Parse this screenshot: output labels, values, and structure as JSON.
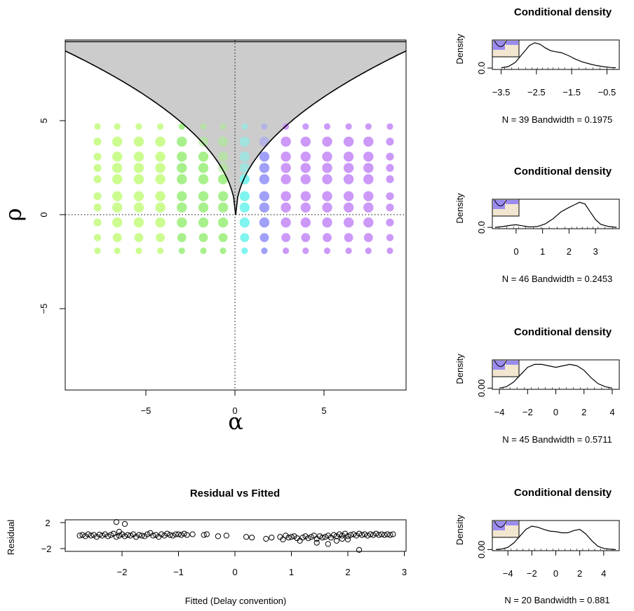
{
  "chart_data": [
    {
      "type": "scatter",
      "xlabel": "α",
      "ylabel": "ρ",
      "xlim": [
        -9.5,
        9.5
      ],
      "ylim": [
        -9.3,
        9.3
      ],
      "xticks": [
        "−5",
        "0",
        "5"
      ],
      "yticks": [
        "−5",
        "0",
        "5"
      ],
      "x_tick_values": [
        -5,
        0,
        5
      ],
      "y_tick_values": [
        -5,
        0,
        5
      ],
      "grid_x": [
        -7.7,
        -6.6,
        -5.4,
        -4.2,
        -3.0,
        -1.8,
        -0.7,
        0.5,
        1.6,
        2.8,
        3.9,
        5.1,
        6.3,
        7.4,
        8.6
      ],
      "grid_y": [
        4.7,
        3.9,
        3.1,
        2.5,
        1.9,
        1.0,
        0.4,
        -0.4,
        -1.2,
        -1.9
      ],
      "shaded_region": "rho > sqrt(8*|alpha|)",
      "colors": {
        "left": "#ccfc90",
        "mid_left": "#a8f08c",
        "center": "#80f4ee",
        "mid_right": "#a0a0f8",
        "right": "#cc99f8",
        "shade": "#cccccc"
      }
    },
    {
      "type": "line",
      "title": "Conditional density",
      "ylabel": "Density",
      "xticks": [
        "−3.5",
        "−2.5",
        "−1.5",
        "−0.5"
      ],
      "x_tick_values": [
        -3.5,
        -2.5,
        -1.5,
        -0.5
      ],
      "xlim": [
        -3.75,
        -0.15
      ],
      "yticks": [
        "0.0"
      ],
      "ylim": [
        -0.05,
        1.0
      ],
      "x": [
        -3.5,
        -3.3,
        -3.1,
        -2.9,
        -2.7,
        -2.55,
        -2.4,
        -2.25,
        -2.1,
        -1.95,
        -1.8,
        -1.6,
        -1.4,
        -1.2,
        -1.0,
        -0.8,
        -0.6,
        -0.4,
        -0.25
      ],
      "y": [
        0.01,
        0.05,
        0.2,
        0.5,
        0.8,
        0.9,
        0.85,
        0.72,
        0.62,
        0.58,
        0.55,
        0.45,
        0.32,
        0.22,
        0.15,
        0.09,
        0.05,
        0.02,
        0.01
      ],
      "footer": "N = 39   Bandwidth = 0.1975"
    },
    {
      "type": "line",
      "title": "Conditional density",
      "ylabel": "Density",
      "xticks": [
        "0",
        "1",
        "2",
        "3"
      ],
      "x_tick_values": [
        0,
        1,
        2,
        3
      ],
      "xlim": [
        -0.9,
        3.9
      ],
      "yticks": [
        "0.0"
      ],
      "ylim": [
        -0.03,
        0.65
      ],
      "x": [
        -0.8,
        -0.5,
        -0.2,
        0.0,
        0.2,
        0.5,
        0.8,
        1.1,
        1.4,
        1.7,
        2.0,
        2.2,
        2.4,
        2.6,
        2.8,
        3.0,
        3.2,
        3.5,
        3.8
      ],
      "y": [
        0.0,
        0.02,
        0.05,
        0.06,
        0.04,
        0.01,
        0.02,
        0.08,
        0.2,
        0.36,
        0.46,
        0.52,
        0.58,
        0.54,
        0.36,
        0.18,
        0.07,
        0.02,
        0.0
      ],
      "footer": "N = 46   Bandwidth = 0.2453"
    },
    {
      "type": "line",
      "title": "Conditional density",
      "ylabel": "Density",
      "xticks": [
        "−4",
        "−2",
        "0",
        "2",
        "4"
      ],
      "x_tick_values": [
        -4,
        -2,
        0,
        2,
        4
      ],
      "xlim": [
        -4.5,
        4.5
      ],
      "yticks": [
        "0.00"
      ],
      "ylim": [
        -0.008,
        0.19
      ],
      "x": [
        -4.0,
        -3.5,
        -3.0,
        -2.5,
        -2.0,
        -1.5,
        -1.0,
        -0.5,
        0.0,
        0.5,
        1.0,
        1.5,
        2.0,
        2.5,
        3.0,
        3.5,
        4.0
      ],
      "y": [
        0.0,
        0.01,
        0.04,
        0.09,
        0.14,
        0.16,
        0.16,
        0.15,
        0.14,
        0.15,
        0.16,
        0.15,
        0.12,
        0.07,
        0.03,
        0.01,
        0.0
      ],
      "footer": "N = 45   Bandwidth = 0.5711"
    },
    {
      "type": "line",
      "title": "Conditional density",
      "ylabel": "Density",
      "xticks": [
        "−4",
        "−2",
        "0",
        "2",
        "4"
      ],
      "x_tick_values": [
        -4,
        -2,
        0,
        2,
        4
      ],
      "xlim": [
        -5.3,
        5.3
      ],
      "yticks": [
        "0.00"
      ],
      "ylim": [
        -0.01,
        0.26
      ],
      "x": [
        -5.0,
        -4.5,
        -4.0,
        -3.5,
        -3.0,
        -2.5,
        -2.0,
        -1.5,
        -1.0,
        -0.5,
        0.0,
        0.5,
        1.0,
        1.5,
        2.0,
        2.5,
        3.0,
        3.5,
        4.0,
        4.5,
        5.0
      ],
      "y": [
        0.0,
        0.005,
        0.02,
        0.06,
        0.12,
        0.18,
        0.21,
        0.2,
        0.18,
        0.165,
        0.16,
        0.15,
        0.15,
        0.17,
        0.18,
        0.14,
        0.08,
        0.03,
        0.01,
        0.003,
        0.0
      ],
      "footer": "N = 20   Bandwidth = 0.881"
    },
    {
      "type": "scatter",
      "title": "Residual vs Fitted",
      "xlabel": "Fitted (Delay convention)",
      "ylabel": "Residual",
      "xticks": [
        "−2",
        "−1",
        "0",
        "1",
        "2",
        "3"
      ],
      "x_tick_values": [
        -2,
        -1,
        0,
        1,
        2,
        3
      ],
      "yticks": [
        "2",
        "−2"
      ],
      "y_tick_values": [
        2,
        -2
      ],
      "xlim": [
        -3.0,
        3.0
      ],
      "ylim": [
        -2.6,
        2.6
      ],
      "points": [
        [
          -2.75,
          0.0
        ],
        [
          -2.7,
          0.1
        ],
        [
          -2.65,
          -0.1
        ],
        [
          -2.6,
          0.2
        ],
        [
          -2.55,
          0.0
        ],
        [
          -2.5,
          0.1
        ],
        [
          -2.45,
          -0.2
        ],
        [
          -2.4,
          0.15
        ],
        [
          -2.35,
          0.0
        ],
        [
          -2.3,
          0.2
        ],
        [
          -2.25,
          -0.1
        ],
        [
          -2.2,
          0.1
        ],
        [
          -2.15,
          0.3
        ],
        [
          -2.1,
          -0.2
        ],
        [
          -2.05,
          0.0
        ],
        [
          -2.0,
          0.2
        ],
        [
          -1.95,
          -0.1
        ],
        [
          -1.9,
          0.1
        ],
        [
          -1.85,
          0.0
        ],
        [
          -1.8,
          0.2
        ],
        [
          -1.75,
          -0.2
        ],
        [
          -1.7,
          0.1
        ],
        [
          -1.65,
          0.0
        ],
        [
          -1.6,
          -0.1
        ],
        [
          -1.55,
          0.2
        ],
        [
          -1.5,
          0.4
        ],
        [
          -1.45,
          0.0
        ],
        [
          -1.4,
          0.1
        ],
        [
          -1.35,
          -0.2
        ],
        [
          -1.3,
          0.2
        ],
        [
          -1.25,
          0.0
        ],
        [
          -1.2,
          0.3
        ],
        [
          -1.15,
          0.1
        ],
        [
          -1.1,
          0.0
        ],
        [
          -1.05,
          0.2
        ],
        [
          -1.0,
          0.2
        ],
        [
          -0.95,
          0.1
        ],
        [
          -0.9,
          0.3
        ],
        [
          -0.85,
          0.1
        ],
        [
          -0.75,
          0.2
        ],
        [
          -0.55,
          0.1
        ],
        [
          -0.5,
          0.2
        ],
        [
          -0.3,
          -0.1
        ],
        [
          -0.15,
          0.0
        ],
        [
          -2.1,
          2.1
        ],
        [
          -1.95,
          1.8
        ],
        [
          -2.05,
          0.6
        ],
        [
          0.2,
          -0.2
        ],
        [
          0.3,
          -0.3
        ],
        [
          0.55,
          -0.5
        ],
        [
          0.65,
          -0.3
        ],
        [
          0.8,
          -0.2
        ],
        [
          0.85,
          -0.6
        ],
        [
          0.9,
          0.0
        ],
        [
          0.95,
          -0.3
        ],
        [
          1.0,
          -0.2
        ],
        [
          1.05,
          -0.1
        ],
        [
          1.1,
          -0.4
        ],
        [
          1.15,
          -0.8
        ],
        [
          1.2,
          -0.3
        ],
        [
          1.25,
          -0.1
        ],
        [
          1.3,
          -0.4
        ],
        [
          1.35,
          -0.2
        ],
        [
          1.4,
          0.0
        ],
        [
          1.45,
          -0.5
        ],
        [
          1.5,
          -0.1
        ],
        [
          1.55,
          -0.3
        ],
        [
          1.6,
          -0.2
        ],
        [
          1.65,
          0.0
        ],
        [
          1.7,
          -0.3
        ],
        [
          1.75,
          0.1
        ],
        [
          1.8,
          -0.1
        ],
        [
          1.85,
          0.2
        ],
        [
          1.9,
          0.0
        ],
        [
          1.95,
          0.3
        ],
        [
          2.0,
          -0.1
        ],
        [
          2.05,
          0.1
        ],
        [
          2.1,
          0.2
        ],
        [
          2.15,
          0.0
        ],
        [
          2.2,
          0.3
        ],
        [
          2.25,
          0.1
        ],
        [
          2.3,
          0.2
        ],
        [
          2.35,
          0.0
        ],
        [
          2.4,
          0.2
        ],
        [
          2.45,
          0.1
        ],
        [
          2.5,
          0.3
        ],
        [
          2.55,
          0.1
        ],
        [
          2.6,
          0.2
        ],
        [
          2.65,
          0.1
        ],
        [
          2.7,
          0.2
        ],
        [
          2.75,
          0.1
        ],
        [
          2.8,
          0.2
        ],
        [
          1.45,
          -1.1
        ],
        [
          1.65,
          -1.3
        ],
        [
          1.8,
          -0.8
        ],
        [
          2.2,
          -2.2
        ],
        [
          1.9,
          -0.5
        ],
        [
          2.0,
          -0.6
        ]
      ]
    }
  ]
}
